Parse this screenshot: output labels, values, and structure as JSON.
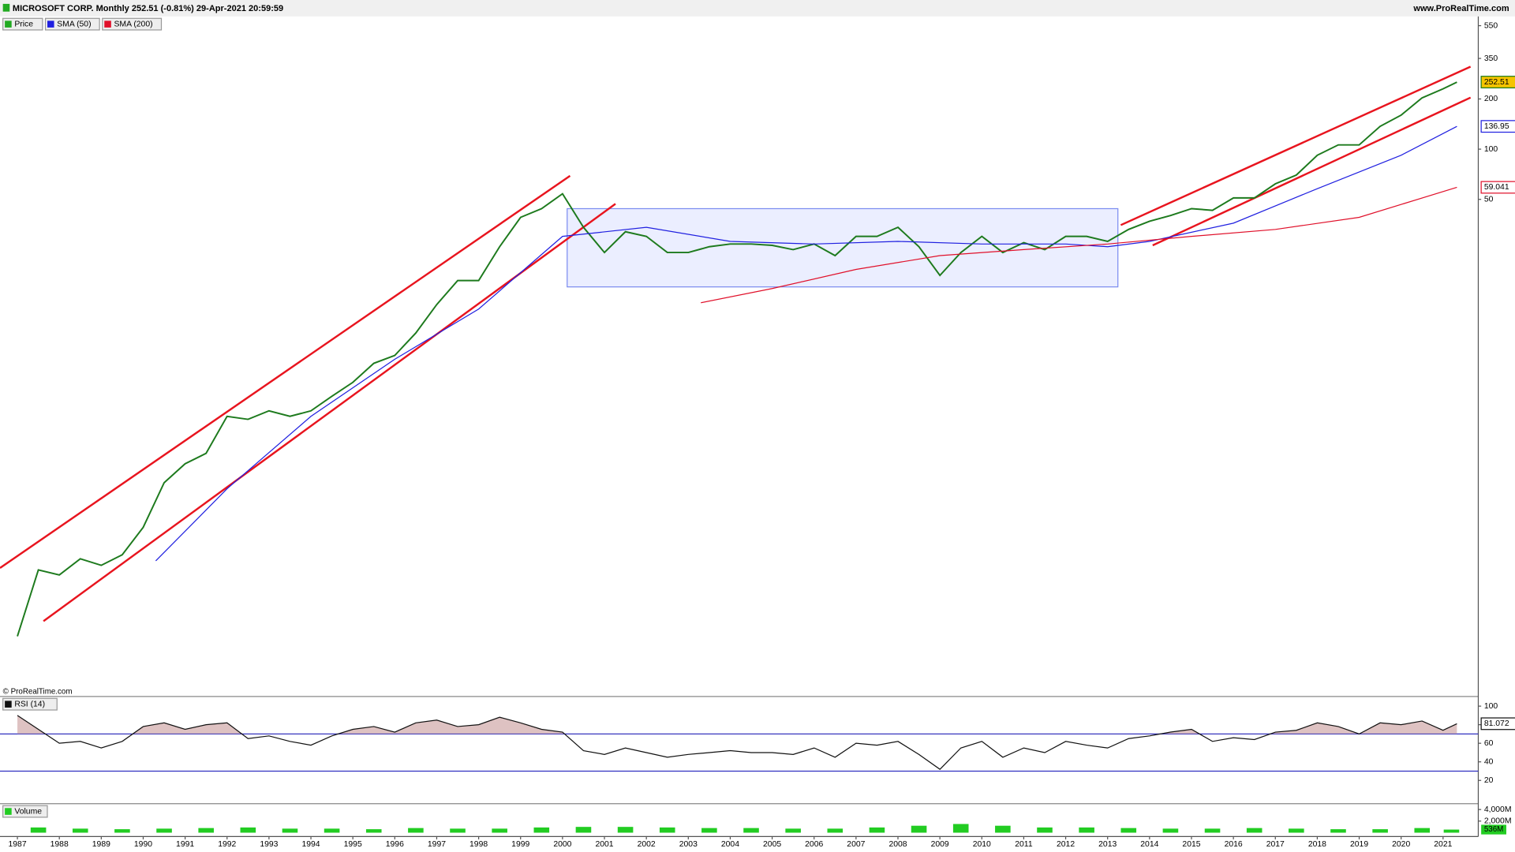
{
  "header": {
    "title": "MICROSOFT CORP. Monthly 252.51 (-0.81%) 29-Apr-2021 20:59:59",
    "site": "www.ProRealTime.com",
    "copyright": "© ProRealTime.com"
  },
  "chart_data": [
    {
      "type": "line",
      "log_scale": true,
      "xlim": [
        1986.585,
        2021.84
      ],
      "ylim": [
        0.053,
        625
      ],
      "xticks": [
        1987,
        1988,
        1989,
        1990,
        1991,
        1992,
        1993,
        1994,
        1995,
        1996,
        1997,
        1998,
        1999,
        2000,
        2001,
        2002,
        2003,
        2004,
        2005,
        2006,
        2007,
        2008,
        2009,
        2010,
        2011,
        2012,
        2013,
        2014,
        2015,
        2016,
        2017,
        2018,
        2019,
        2020,
        2021
      ],
      "yticks": [
        50,
        100,
        200,
        350,
        550
      ],
      "series": [
        {
          "name": "Price",
          "color": "#1d7a1d",
          "x": [
            1987,
            1987.5,
            1988,
            1988.5,
            1989,
            1989.5,
            1990,
            1990.5,
            1991,
            1991.5,
            1992,
            1992.5,
            1993,
            1993.5,
            1994,
            1994.5,
            1995,
            1995.5,
            1996,
            1996.5,
            1997,
            1997.5,
            1998,
            1998.5,
            1999,
            1999.5,
            2000,
            2000.5,
            2001,
            2001.5,
            2002,
            2002.5,
            2003,
            2003.5,
            2004,
            2004.5,
            2005,
            2005.5,
            2006,
            2006.5,
            2007,
            2007.5,
            2008,
            2008.5,
            2009,
            2009.5,
            2010,
            2010.5,
            2011,
            2011.5,
            2012,
            2012.5,
            2013,
            2013.5,
            2014,
            2014.5,
            2015,
            2015.5,
            2016,
            2016.5,
            2017,
            2017.5,
            2018,
            2018.5,
            2019,
            2019.5,
            2020,
            2020.5,
            2021,
            2021.33
          ],
          "values": [
            0.12,
            0.3,
            0.28,
            0.35,
            0.32,
            0.37,
            0.54,
            1.0,
            1.3,
            1.5,
            2.5,
            2.4,
            2.7,
            2.5,
            2.7,
            3.3,
            4.0,
            5.2,
            5.8,
            7.9,
            11.7,
            16.3,
            16.3,
            26,
            39,
            44,
            54,
            34,
            24,
            32,
            30,
            24,
            24,
            26,
            27,
            27,
            26.5,
            25,
            27,
            23,
            30,
            30,
            34,
            26,
            17.5,
            24,
            30,
            24,
            27.5,
            25,
            30,
            30,
            28,
            33,
            37,
            40,
            44,
            43,
            51,
            51,
            62,
            70,
            92,
            106,
            106,
            137,
            160,
            203,
            230,
            252.51
          ],
          "label_fill": "#f5c400"
        },
        {
          "name": "SMA (50)",
          "color": "#2020e0",
          "x": [
            1990.3,
            1992,
            1994,
            1996,
            1998,
            2000,
            2002,
            2004,
            2006,
            2008,
            2010,
            2012,
            2013,
            2014,
            2016,
            2018,
            2020,
            2021.33
          ],
          "values": [
            0.34,
            0.92,
            2.5,
            5.5,
            11,
            30,
            34,
            28,
            27,
            28,
            27,
            27,
            26,
            28,
            36,
            58,
            92,
            136.95
          ],
          "label_fill": "#ffffff"
        },
        {
          "name": "SMA (200)",
          "color": "#e0102a",
          "x": [
            2003.3,
            2005,
            2007,
            2009,
            2011,
            2013,
            2015,
            2017,
            2019,
            2021.33
          ],
          "values": [
            12,
            14.6,
            19,
            23,
            25,
            27,
            30,
            33,
            39,
            59.041
          ],
          "label_fill": "#ffffff"
        }
      ]
    },
    {
      "type": "line",
      "xlim": [
        1986.585,
        2021.84
      ],
      "ylim": [
        -3,
        110.4
      ],
      "yticks": [
        100,
        80,
        60,
        40,
        20
      ],
      "levels": [
        70,
        30
      ],
      "series": [
        {
          "name": "RSI (14)",
          "color": "#111111",
          "x": [
            1987,
            1987.5,
            1988,
            1988.5,
            1989,
            1989.5,
            1990,
            1990.5,
            1991,
            1991.5,
            1992,
            1992.5,
            1993,
            1993.5,
            1994,
            1994.5,
            1995,
            1995.5,
            1996,
            1996.5,
            1997,
            1997.5,
            1998,
            1998.5,
            1999,
            1999.5,
            2000,
            2000.5,
            2001,
            2001.5,
            2002,
            2002.5,
            2003,
            2003.5,
            2004,
            2004.5,
            2005,
            2005.5,
            2006,
            2006.5,
            2007,
            2007.5,
            2008,
            2008.5,
            2009,
            2009.5,
            2010,
            2010.5,
            2011,
            2011.5,
            2012,
            2012.5,
            2013,
            2013.5,
            2014,
            2014.5,
            2015,
            2015.5,
            2016,
            2016.5,
            2017,
            2017.5,
            2018,
            2018.5,
            2019,
            2019.5,
            2020,
            2020.5,
            2021,
            2021.33
          ],
          "values": [
            90,
            75,
            60,
            62,
            55,
            62,
            78,
            82,
            75,
            80,
            82,
            65,
            68,
            62,
            58,
            68,
            75,
            78,
            72,
            82,
            85,
            78,
            80,
            88,
            82,
            75,
            72,
            52,
            48,
            55,
            50,
            45,
            48,
            50,
            52,
            50,
            50,
            48,
            55,
            45,
            60,
            58,
            62,
            48,
            32,
            55,
            62,
            45,
            55,
            50,
            62,
            58,
            55,
            65,
            68,
            72,
            75,
            62,
            66,
            64,
            72,
            74,
            82,
            78,
            70,
            82,
            80,
            84,
            74,
            81.072
          ]
        }
      ]
    },
    {
      "type": "bar",
      "xlim": [
        1986.585,
        2021.84
      ],
      "ylim": [
        0,
        4670
      ],
      "yticks": [
        {
          "value": 4000,
          "label": "4,000M"
        },
        {
          "value": 2000,
          "label": "2,000M"
        }
      ],
      "series": [
        {
          "name": "Volume",
          "color": "#22cc22",
          "x": [
            1987.5,
            1988.5,
            1989.5,
            1990.5,
            1991.5,
            1992.5,
            1993.5,
            1994.5,
            1995.5,
            1996.5,
            1997.5,
            1998.5,
            1999.5,
            2000.5,
            2001.5,
            2002.5,
            2003.5,
            2004.5,
            2005.5,
            2006.5,
            2007.5,
            2008.5,
            2009.5,
            2010.5,
            2011.5,
            2012.5,
            2013.5,
            2014.5,
            2015.5,
            2016.5,
            2017.5,
            2018.5,
            2019.5,
            2020.5,
            2021.2
          ],
          "values": [
            900,
            700,
            600,
            700,
            800,
            900,
            700,
            700,
            600,
            800,
            700,
            700,
            900,
            1000,
            1000,
            900,
            800,
            800,
            700,
            700,
            900,
            1200,
            1500,
            1200,
            900,
            900,
            800,
            700,
            700,
            800,
            700,
            600,
            600,
            800,
            536
          ],
          "value_labels": [
            null,
            null,
            null,
            null,
            null,
            null,
            null,
            null,
            null,
            null,
            null,
            null,
            null,
            null,
            null,
            null,
            null,
            null,
            null,
            null,
            null,
            null,
            null,
            null,
            null,
            null,
            null,
            null,
            null,
            null,
            null,
            null,
            null,
            null,
            "536M"
          ]
        }
      ]
    }
  ]
}
